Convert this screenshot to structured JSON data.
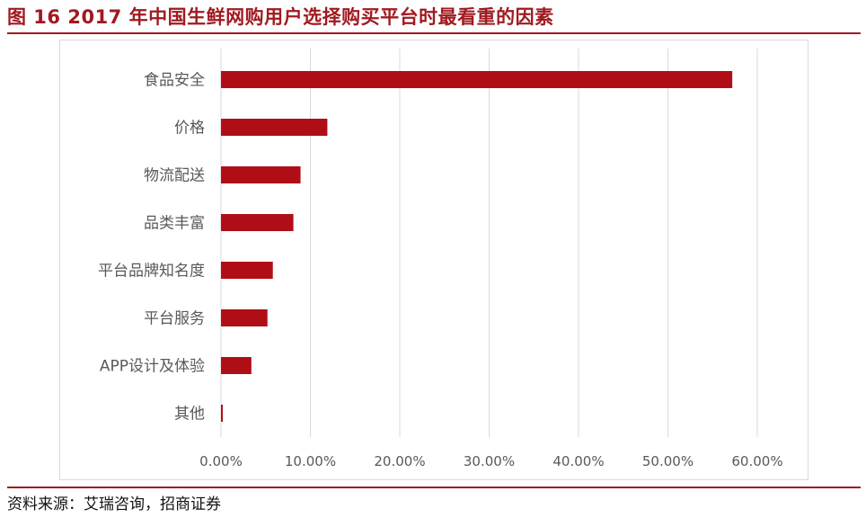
{
  "header": {
    "title": "图 16 2017 年中国生鲜网购用户选择购买平台时最看重的因素"
  },
  "footer": {
    "source": "资料来源：艾瑞咨询，招商证券"
  },
  "colors": {
    "accent": "#a01a20",
    "bar": "#b00e16",
    "grid": "#d9d9d9",
    "label": "#595959"
  },
  "chart_data": {
    "type": "bar",
    "orientation": "horizontal",
    "categories": [
      "食品安全",
      "价格",
      "物流配送",
      "品类丰富",
      "平台品牌知名度",
      "平台服务",
      "APP设计及体验",
      "其他"
    ],
    "values": [
      0.572,
      0.119,
      0.089,
      0.081,
      0.058,
      0.052,
      0.034,
      0.002
    ],
    "xlim": [
      0,
      0.6
    ],
    "xticks": [
      "0.00%",
      "10.00%",
      "20.00%",
      "30.00%",
      "40.00%",
      "50.00%",
      "60.00%"
    ],
    "grid": true,
    "legend": "none"
  }
}
